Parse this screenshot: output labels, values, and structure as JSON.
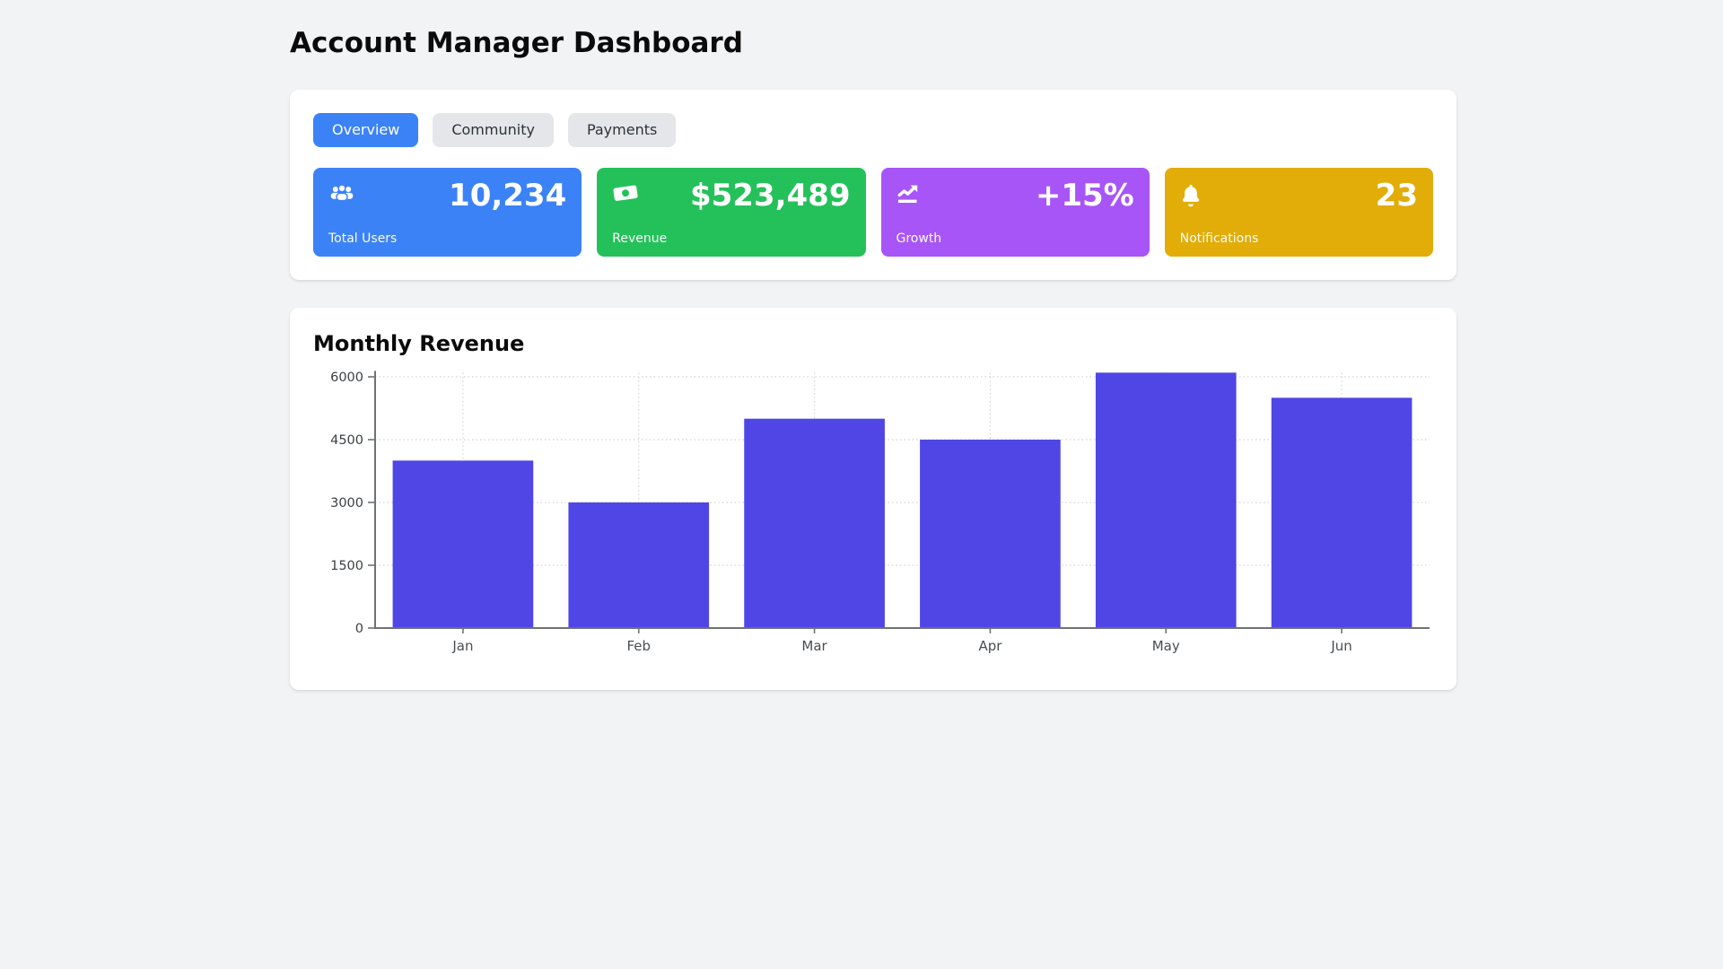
{
  "page": {
    "title": "Account Manager Dashboard"
  },
  "tabs": [
    {
      "label": "Overview",
      "active": true
    },
    {
      "label": "Community",
      "active": false
    },
    {
      "label": "Payments",
      "active": false
    }
  ],
  "colors": {
    "active_tab": "#3b82f6",
    "inactive_tab": "#e4e6e9",
    "page_background": "#f1f3f5",
    "card_background": "#ffffff"
  },
  "stats": [
    {
      "label": "Total Users",
      "value": "10,234",
      "icon": "users-icon",
      "color": "#3b82f6"
    },
    {
      "label": "Revenue",
      "value": "$523,489",
      "icon": "money-bill-icon",
      "color": "#24c15a"
    },
    {
      "label": "Growth",
      "value": "+15%",
      "icon": "chart-line-icon",
      "color": "#a855f7"
    },
    {
      "label": "Notifications",
      "value": "23",
      "icon": "bell-icon",
      "color": "#e2ac09"
    }
  ],
  "chart_section": {
    "title": "Monthly Revenue"
  },
  "chart_data": {
    "type": "bar",
    "categories": [
      "Jan",
      "Feb",
      "Mar",
      "Apr",
      "May",
      "Jun"
    ],
    "values": [
      4000,
      3000,
      5000,
      4500,
      6100,
      5500
    ],
    "title": "Monthly Revenue",
    "xlabel": "",
    "ylabel": "",
    "ylim": [
      0,
      6100
    ],
    "yticks": [
      0,
      1500,
      3000,
      4500,
      6000
    ],
    "bar_color": "#4f46e5",
    "grid": "dotted",
    "legend": "none"
  }
}
